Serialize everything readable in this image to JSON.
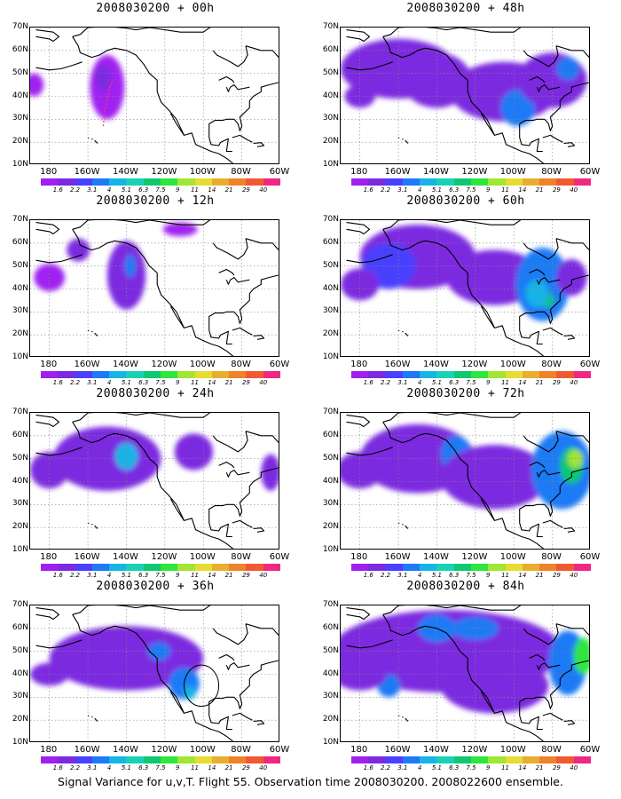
{
  "panels": [
    {
      "title": "2008030200 + 00h",
      "col": 0,
      "row": 0
    },
    {
      "title": "2008030200 + 48h",
      "col": 1,
      "row": 0
    },
    {
      "title": "2008030200 + 12h",
      "col": 0,
      "row": 1
    },
    {
      "title": "2008030200 + 60h",
      "col": 1,
      "row": 1
    },
    {
      "title": "2008030200 + 24h",
      "col": 0,
      "row": 2
    },
    {
      "title": "2008030200 + 72h",
      "col": 1,
      "row": 2
    },
    {
      "title": "2008030200 + 36h",
      "col": 0,
      "row": 3
    },
    {
      "title": "2008030200 + 84h",
      "col": 1,
      "row": 3
    }
  ],
  "map": {
    "lat_labels": [
      "70N",
      "60N",
      "50N",
      "40N",
      "30N",
      "20N",
      "10N"
    ],
    "lon_labels": [
      "180",
      "160W",
      "140W",
      "120W",
      "100W",
      "80W",
      "60W"
    ],
    "lat_range": [
      10,
      70
    ],
    "lon_range": [
      -190,
      -60
    ],
    "grid": "dotted"
  },
  "colorbar": {
    "labels": [
      "1.6",
      "2.2",
      "3.1",
      "4",
      "5.1",
      "6.3",
      "7.5",
      "9",
      "11",
      "14",
      "21",
      "29",
      "40"
    ],
    "colors": [
      "#a020f0",
      "#7b2ae0",
      "#4a40ff",
      "#1e7af5",
      "#17b4e6",
      "#18d2b4",
      "#10c870",
      "#2ee63c",
      "#a0e632",
      "#e6dc32",
      "#e6af2d",
      "#f08228",
      "#f05a32",
      "#f02882"
    ]
  },
  "caption": "Signal Variance for u,v,T. Flight 55. Observation time 2008030200. 2008022600 ensemble."
}
